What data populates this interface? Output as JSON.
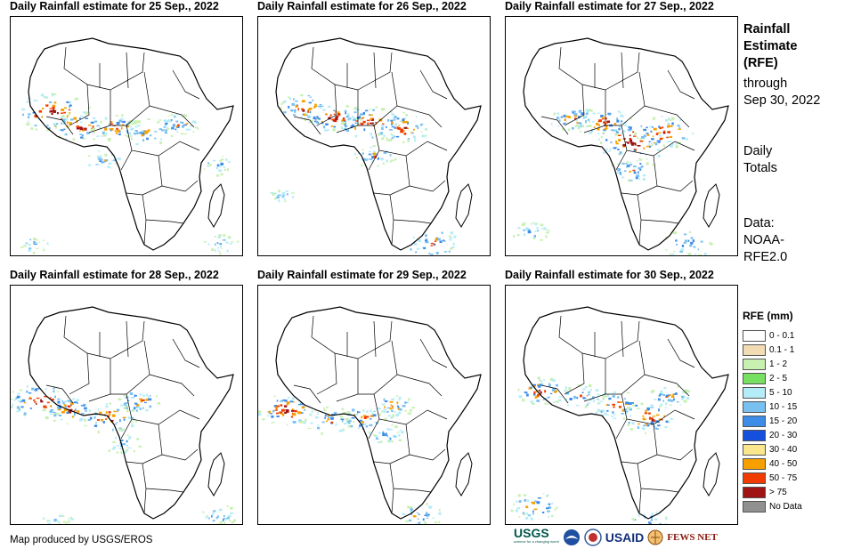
{
  "panels": [
    {
      "title": "Daily Rainfall estimate for 25 Sep., 2022"
    },
    {
      "title": "Daily Rainfall estimate for 26 Sep., 2022"
    },
    {
      "title": "Daily Rainfall estimate for 27 Sep., 2022"
    },
    {
      "title": "Daily Rainfall estimate for 28 Sep., 2022"
    },
    {
      "title": "Daily Rainfall estimate for 29 Sep., 2022"
    },
    {
      "title": "Daily Rainfall estimate for 30 Sep., 2022"
    }
  ],
  "side": {
    "title_line1": "Rainfall",
    "title_line2": "Estimate",
    "title_line3": "(RFE)",
    "through": "through",
    "date": "Sep 30, 2022",
    "daily": "Daily",
    "totals": "Totals",
    "data_label": "Data:",
    "data_src1": "NOAA-",
    "data_src2": "RFE2.0"
  },
  "legend": {
    "title": "RFE (mm)",
    "items": [
      {
        "label": "0 - 0.1",
        "color": "#ffffff"
      },
      {
        "label": "0.1 - 1",
        "color": "#f2dcb4"
      },
      {
        "label": "1 - 2",
        "color": "#c8f0b0"
      },
      {
        "label": "2 - 5",
        "color": "#78e060"
      },
      {
        "label": "5 - 10",
        "color": "#b4ecf8"
      },
      {
        "label": "10 - 15",
        "color": "#78c0f0"
      },
      {
        "label": "15 - 20",
        "color": "#3c8ce8"
      },
      {
        "label": "20 - 30",
        "color": "#1450dc"
      },
      {
        "label": "30 - 40",
        "color": "#fae68c"
      },
      {
        "label": "40 - 50",
        "color": "#f5a000"
      },
      {
        "label": "50 - 75",
        "color": "#f03c00"
      },
      {
        "label": "> 75",
        "color": "#a01414"
      },
      {
        "label": "No Data",
        "color": "#909090"
      }
    ]
  },
  "credit": "Map produced by USGS/EROS",
  "logos": {
    "usgs": "USGS",
    "usgs_tag": "science for a changing world",
    "usaid": "USAID",
    "fews": "FEWS NET"
  }
}
